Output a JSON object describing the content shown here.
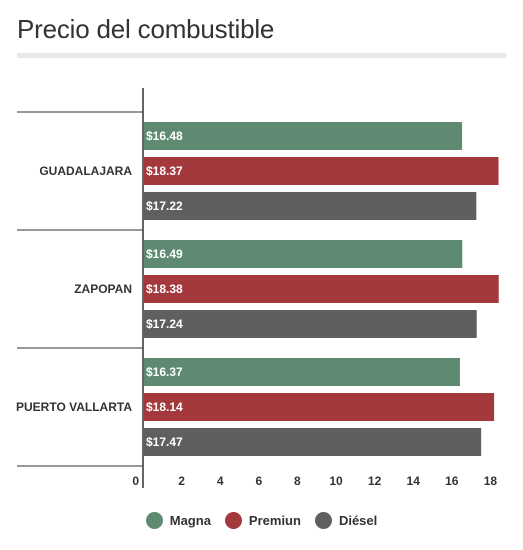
{
  "title": "Precio del combustible",
  "chart_data": {
    "type": "bar",
    "orientation": "horizontal",
    "categories": [
      "GUADALAJARA",
      "ZAPOPAN",
      "PUERTO VALLARTA"
    ],
    "series": [
      {
        "name": "Magna",
        "color": "#5e8a72",
        "values": [
          16.48,
          16.49,
          16.37
        ],
        "labels": [
          "$16.48",
          "$16.49",
          "$16.37"
        ]
      },
      {
        "name": "Premiun",
        "color": "#a3383d",
        "values": [
          18.37,
          18.38,
          18.14
        ],
        "labels": [
          "$18.37",
          "$18.38",
          "$18.14"
        ]
      },
      {
        "name": "Diésel",
        "color": "#5f5f5f",
        "values": [
          17.22,
          17.24,
          17.47
        ],
        "labels": [
          "$17.22",
          "$17.24",
          "$17.47"
        ]
      }
    ],
    "xlim": [
      0,
      18.5
    ],
    "xticks": [
      "0",
      "2",
      "4",
      "6",
      "8",
      "10",
      "12",
      "14",
      "16",
      "18"
    ],
    "legend": "bottom",
    "grid": false
  }
}
